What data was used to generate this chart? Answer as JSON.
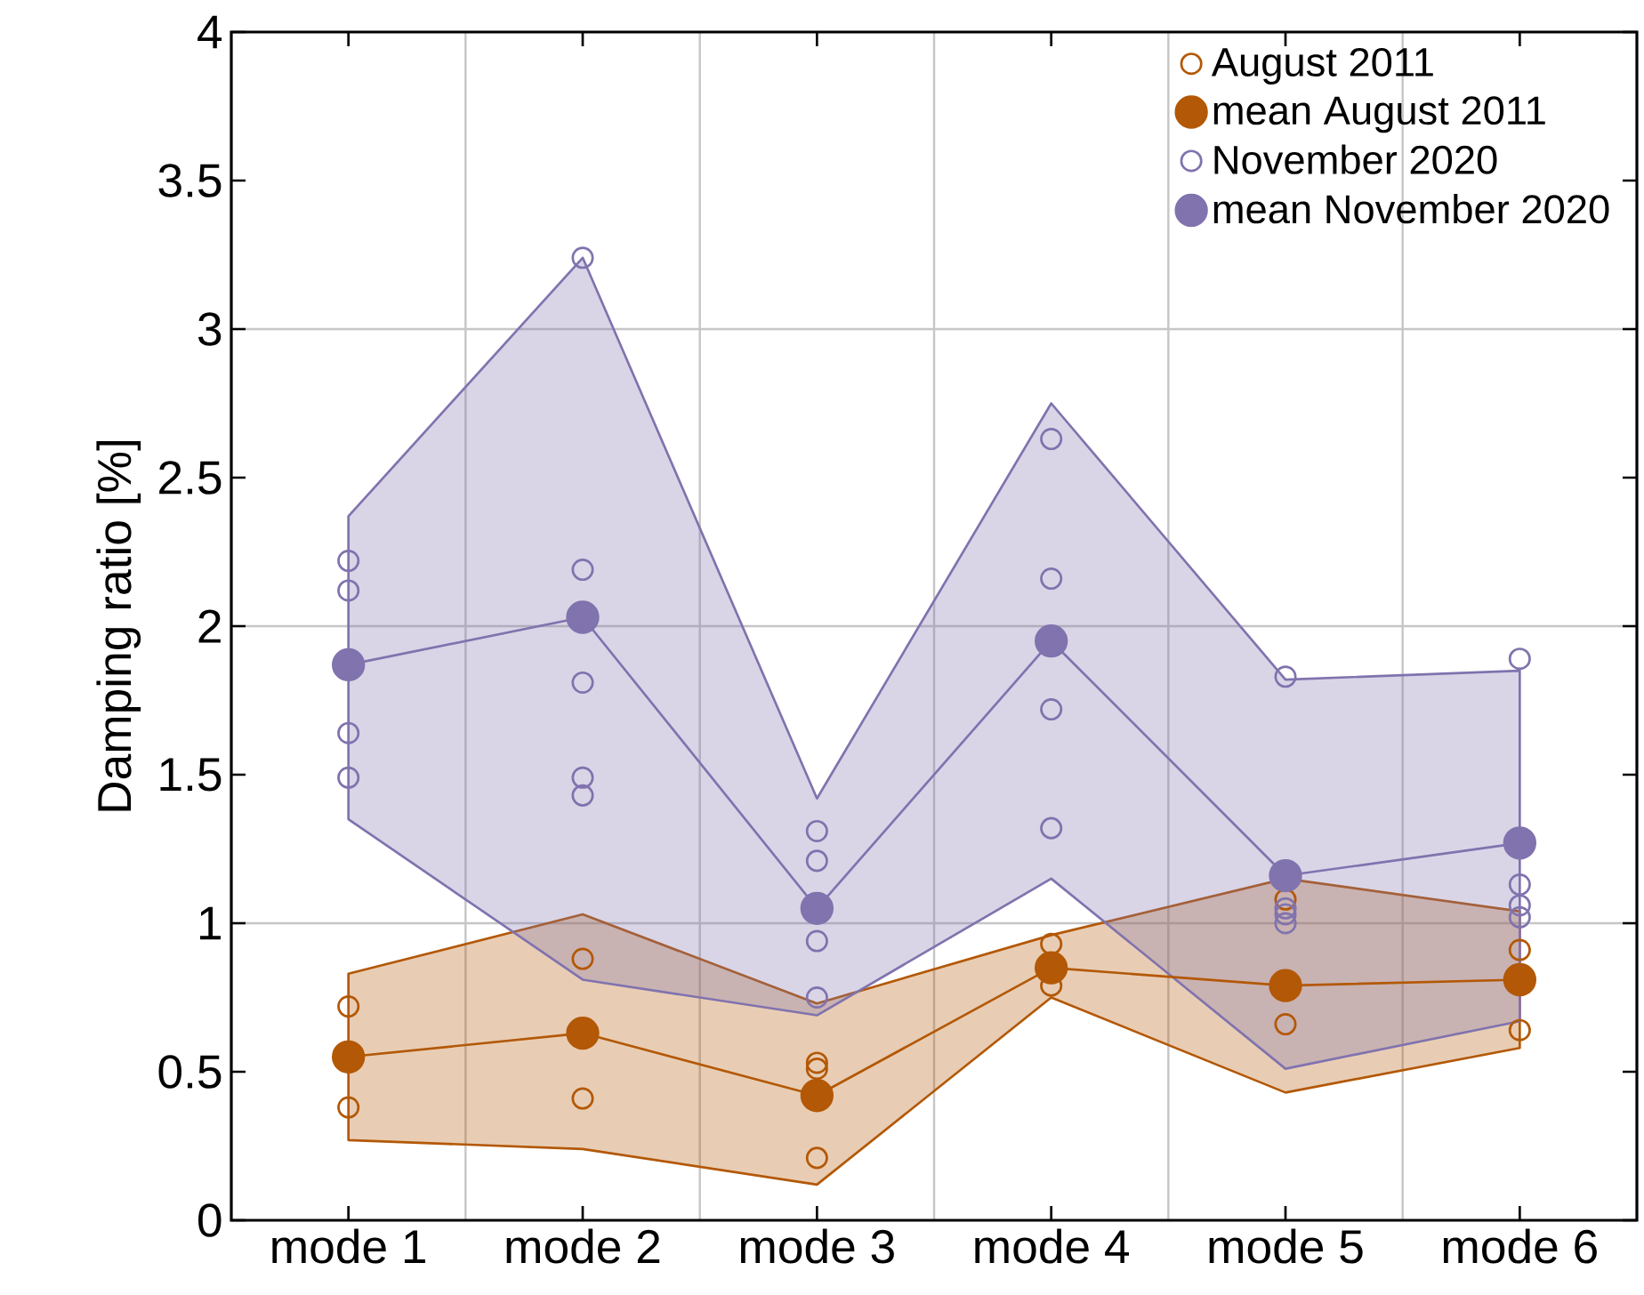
{
  "chart_data": {
    "type": "line",
    "ylabel": "Damping ratio [%]",
    "categories": [
      "mode 1",
      "mode 2",
      "mode 3",
      "mode 4",
      "mode 5",
      "mode 6"
    ],
    "ylim": [
      0,
      4
    ],
    "yticks": [
      0,
      0.5,
      1,
      1.5,
      2,
      2.5,
      3,
      3.5,
      4
    ],
    "grid": true,
    "legend": "top right",
    "series": [
      {
        "name": "August 2011",
        "type": "scatter",
        "marker": "circle",
        "color": "#b35806",
        "x": [
          "mode 1",
          "mode 1",
          "mode 2",
          "mode 2",
          "mode 2",
          "mode 3",
          "mode 3",
          "mode 3",
          "mode 4",
          "mode 4",
          "mode 5",
          "mode 5",
          "mode 6",
          "mode 6",
          "mode 6"
        ],
        "values": [
          0.72,
          0.38,
          0.88,
          null,
          0.41,
          0.53,
          0.51,
          0.21,
          0.93,
          0.79,
          1.08,
          0.66,
          0.91,
          null,
          0.64
        ]
      },
      {
        "name": "mean August 2011",
        "type": "line",
        "marker": "circle",
        "color": "#b35806",
        "values": [
          0.55,
          0.63,
          0.42,
          0.85,
          0.79,
          0.81
        ],
        "lower": [
          0.27,
          0.24,
          0.12,
          0.75,
          0.43,
          0.58
        ],
        "upper": [
          0.83,
          1.03,
          0.73,
          0.96,
          1.15,
          1.04
        ]
      },
      {
        "name": "November 2020",
        "type": "scatter",
        "marker": "circle",
        "color": "#8073ae",
        "x": [
          "mode 1",
          "mode 1",
          "mode 1",
          "mode 1",
          "mode 2",
          "mode 2",
          "mode 2",
          "mode 2",
          "mode 2",
          "mode 3",
          "mode 3",
          "mode 3",
          "mode 3",
          "mode 4",
          "mode 4",
          "mode 4",
          "mode 4",
          "mode 5",
          "mode 5",
          "mode 5",
          "mode 5",
          "mode 6",
          "mode 6",
          "mode 6",
          "mode 6",
          "mode 6"
        ],
        "values": [
          2.22,
          2.12,
          1.64,
          1.49,
          3.24,
          2.19,
          1.81,
          1.49,
          1.43,
          1.31,
          1.21,
          0.94,
          0.75,
          2.63,
          2.16,
          1.72,
          1.32,
          1.83,
          1.05,
          1.03,
          1.0,
          1.89,
          null,
          1.13,
          1.06,
          1.02
        ]
      },
      {
        "name": "mean November 2020",
        "type": "line",
        "marker": "circle",
        "color": "#8073ae",
        "values": [
          1.87,
          2.03,
          1.05,
          1.95,
          1.16,
          1.27
        ],
        "lower": [
          1.35,
          0.81,
          0.69,
          1.15,
          0.51,
          0.67
        ],
        "upper": [
          2.37,
          3.24,
          1.42,
          2.75,
          1.82,
          1.85
        ]
      }
    ]
  }
}
